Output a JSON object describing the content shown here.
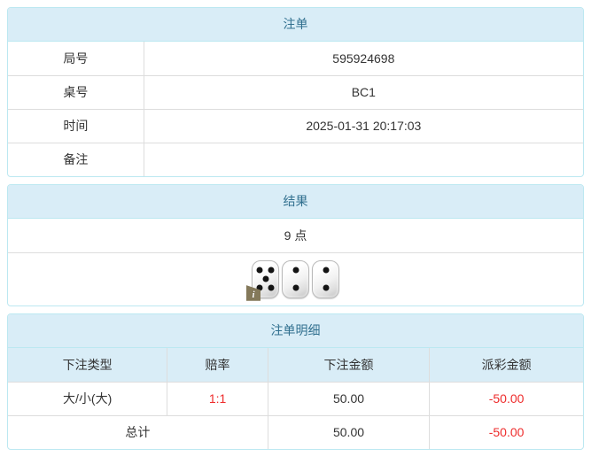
{
  "colors": {
    "header_bg": "#d9edf7",
    "header_text": "#31708f",
    "border_outer": "#bce8f1",
    "border_inner": "#dddddd",
    "text": "#333333",
    "negative": "#ee2c2c"
  },
  "bet_order": {
    "title": "注单",
    "rows": [
      {
        "label": "局号",
        "value": "595924698"
      },
      {
        "label": "桌号",
        "value": "BC1"
      },
      {
        "label": "时间",
        "value": "2025-01-31 20:17:03"
      },
      {
        "label": "备注",
        "value": ""
      }
    ]
  },
  "result": {
    "title": "结果",
    "points": "9 点",
    "dice": [
      5,
      2,
      2
    ],
    "info_badge": "i"
  },
  "bet_details": {
    "title": "注单明细",
    "columns": [
      "下注类型",
      "赔率",
      "下注金额",
      "派彩金额"
    ],
    "rows": [
      {
        "type": "大/小(大)",
        "odds": "1:1",
        "amount": "50.00",
        "payout": "-50.00"
      }
    ],
    "total": {
      "label": "总计",
      "amount": "50.00",
      "payout": "-50.00"
    }
  }
}
